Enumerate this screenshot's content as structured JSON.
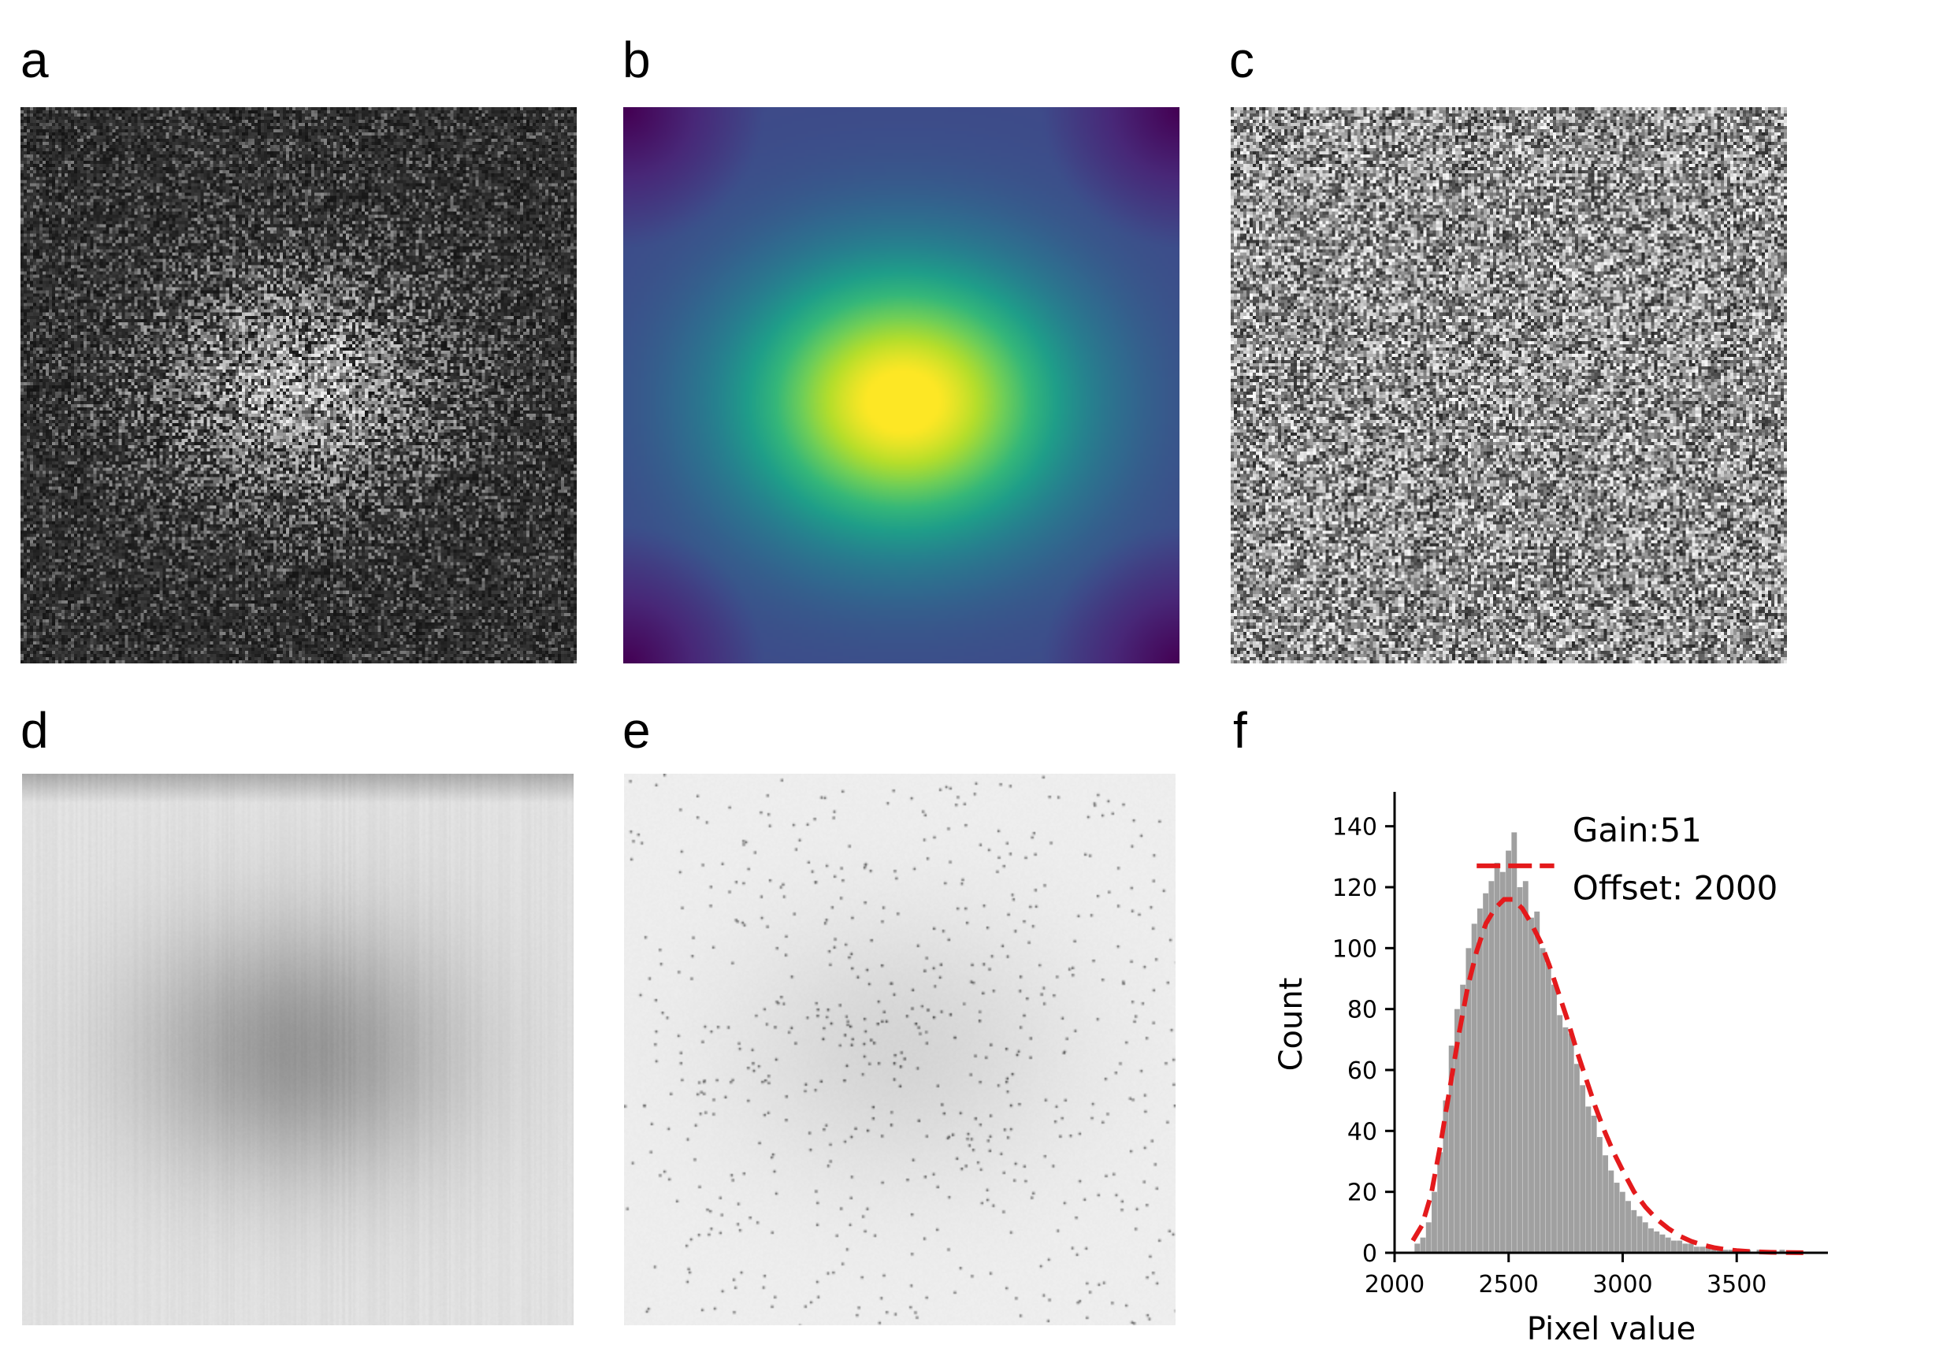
{
  "panels": {
    "a": {
      "label": "a",
      "colormap": "gray"
    },
    "b": {
      "label": "b",
      "colormap": "viridis"
    },
    "c": {
      "label": "c",
      "colormap": "gray"
    },
    "d": {
      "label": "d",
      "colormap": "gray"
    },
    "e": {
      "label": "e",
      "colormap": "gray_r"
    },
    "f": {
      "label": "f"
    }
  },
  "chart_data": {
    "type": "bar",
    "xlabel": "Pixel value",
    "ylabel": "Count",
    "xlim": [
      2000,
      3900
    ],
    "ylim": [
      0,
      150
    ],
    "xticks": [
      2000,
      2500,
      3000,
      3500
    ],
    "yticks": [
      0,
      20,
      40,
      60,
      80,
      100,
      120,
      140
    ],
    "annotation": [
      "Gain:51",
      "Offset: 2000"
    ],
    "histogram_color": "#a0a0a0",
    "fit_color": "#e41a1c",
    "histogram": {
      "bins_x": [
        2100,
        2125,
        2150,
        2175,
        2200,
        2225,
        2250,
        2275,
        2300,
        2325,
        2350,
        2375,
        2400,
        2425,
        2450,
        2475,
        2500,
        2525,
        2550,
        2575,
        2600,
        2625,
        2650,
        2675,
        2700,
        2725,
        2750,
        2775,
        2800,
        2825,
        2850,
        2875,
        2900,
        2925,
        2950,
        2975,
        3000,
        3025,
        3050,
        3075,
        3100,
        3125,
        3150,
        3175,
        3200,
        3225,
        3250,
        3275,
        3300,
        3325,
        3350,
        3375,
        3400,
        3425,
        3450,
        3475,
        3500,
        3525,
        3550,
        3575,
        3600,
        3625,
        3650,
        3675,
        3700,
        3725,
        3750,
        3775,
        3800
      ],
      "counts": [
        3,
        5,
        10,
        20,
        33,
        50,
        68,
        80,
        88,
        100,
        108,
        113,
        118,
        122,
        128,
        125,
        132,
        138,
        120,
        122,
        110,
        112,
        100,
        95,
        88,
        78,
        74,
        72,
        62,
        55,
        48,
        45,
        38,
        32,
        27,
        23,
        20,
        17,
        14,
        12,
        10,
        8,
        7,
        6,
        5,
        4,
        4,
        3,
        3,
        2,
        2,
        2,
        1,
        1,
        1,
        1,
        1,
        0,
        1,
        0,
        1,
        0,
        0,
        0,
        1,
        0,
        0,
        0,
        0
      ]
    },
    "fit_curve": {
      "x": [
        2080,
        2120,
        2160,
        2200,
        2240,
        2280,
        2320,
        2360,
        2400,
        2440,
        2480,
        2520,
        2560,
        2600,
        2640,
        2680,
        2720,
        2760,
        2800,
        2840,
        2880,
        2920,
        2960,
        3000,
        3050,
        3100,
        3150,
        3200,
        3250,
        3300,
        3350,
        3400,
        3450,
        3500,
        3550,
        3600,
        3650,
        3700,
        3750,
        3800
      ],
      "y": [
        4,
        9,
        19,
        35,
        53,
        71,
        87,
        99,
        108,
        113,
        116,
        116,
        113,
        108,
        102,
        94,
        85,
        76,
        66,
        57,
        48,
        40,
        33,
        27,
        20,
        15,
        11,
        8,
        5.5,
        3.8,
        2.6,
        1.7,
        1.1,
        0.7,
        0.45,
        0.28,
        0.17,
        0.1,
        0.06,
        0.03
      ]
    },
    "peak_marker": {
      "x": [
        2360,
        2700
      ],
      "y": 127
    }
  }
}
